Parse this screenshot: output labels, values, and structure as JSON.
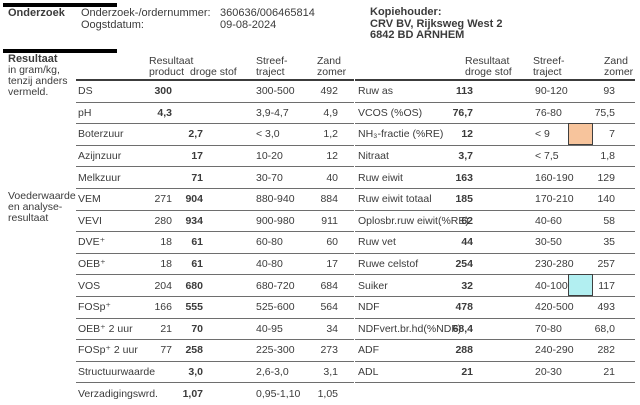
{
  "colors": {
    "orange_marker": "#F7C49C",
    "cyan_marker": "#B2EFF1"
  },
  "header": {
    "section_title": "Onderzoek",
    "order_label": "Onderzoek-/ordernummer:",
    "order_value": "360636/006465814",
    "harvest_label": "Oogstdatum:",
    "harvest_value": "09-08-2024",
    "copyholder": {
      "label": "Kopiehouder:",
      "lines": [
        "CRV BV, Rijksweg West 2",
        "6842 BD  ARNHEM"
      ]
    }
  },
  "result_section": {
    "title": "Resultaat",
    "subtitle_lines": [
      "in gram/kg,",
      "tenzij anders",
      "vermeld."
    ],
    "sidebar_lines": [
      "Voederwaarde",
      "en analyse-",
      "resultaat"
    ]
  },
  "left_table": {
    "headers": {
      "result": "Resultaat",
      "sub_product": "product",
      "sub_ds": "droge stof",
      "streef_1": "Streef-",
      "streef_2": "traject",
      "zand_1": "Zand",
      "zand_2": "zomer"
    },
    "rows": [
      {
        "label": "DS",
        "product": "300",
        "ds": "",
        "streef": "300-500",
        "zand": "492"
      },
      {
        "label": "pH",
        "product": "4,3",
        "ds": "",
        "streef": "3,9-4,7",
        "zand": "4,9"
      },
      {
        "label": "Boterzuur",
        "product": "",
        "ds": "2,7",
        "streef": "< 3,0",
        "zand": "1,2"
      },
      {
        "label": "Azijnzuur",
        "product": "",
        "ds": "17",
        "streef": "10-20",
        "zand": "12"
      },
      {
        "label": "Melkzuur",
        "product": "",
        "ds": "71",
        "streef": "30-70",
        "zand": "40"
      },
      {
        "label": "VEM",
        "product": "271",
        "ds": "904",
        "streef": "880-940",
        "zand": "884"
      },
      {
        "label": "VEVI",
        "product": "280",
        "ds": "934",
        "streef": "900-980",
        "zand": "911"
      },
      {
        "label": "DVE⁺",
        "product": "18",
        "ds": "61",
        "streef": "60-80",
        "zand": "60"
      },
      {
        "label": "OEB⁺",
        "product": "18",
        "ds": "61",
        "streef": "40-80",
        "zand": "17"
      },
      {
        "label": "VOS",
        "product": "204",
        "ds": "680",
        "streef": "680-720",
        "zand": "684"
      },
      {
        "label": "FOSp⁺",
        "product": "166",
        "ds": "555",
        "streef": "525-600",
        "zand": "564"
      },
      {
        "label": "OEB⁺ 2 uur",
        "product": "21",
        "ds": "70",
        "streef": "40-95",
        "zand": "34"
      },
      {
        "label": "FOSp⁺ 2 uur",
        "product": "77",
        "ds": "258",
        "streef": "225-300",
        "zand": "273"
      },
      {
        "label": "Structuurwaarde",
        "product": "",
        "ds": "3,0",
        "streef": "2,6-3,0",
        "zand": "3,1"
      },
      {
        "label": "Verzadigingswrd.",
        "product": "",
        "ds": "1,07",
        "streef": "0,95-1,10",
        "zand": "1,05"
      }
    ]
  },
  "right_table": {
    "headers": {
      "result_1": "Resultaat",
      "result_2": "droge stof",
      "streef_1": "Streef-",
      "streef_2": "traject",
      "zand_1": "Zand",
      "zand_2": "zomer"
    },
    "rows": [
      {
        "label": "Ruw as",
        "ds": "113",
        "streef": "90-120",
        "zand": "93"
      },
      {
        "label": "VCOS (%OS)",
        "ds": "76,7",
        "streef": "76-80",
        "zand": "75,5"
      },
      {
        "label": "NH₃-fractie (%RE)",
        "ds": "12",
        "streef": "< 9",
        "zand": "7",
        "marker": "orange_marker"
      },
      {
        "label": "Nitraat",
        "ds": "3,7",
        "streef": "< 7,5",
        "zand": "1,8"
      },
      {
        "label": "Ruw eiwit",
        "ds": "163",
        "streef": "160-190",
        "zand": "129"
      },
      {
        "label": "Ruw eiwit totaal",
        "ds": "185",
        "streef": "170-210",
        "zand": "140"
      },
      {
        "label": "Oplosbr.ruw eiwit(%RE)",
        "ds": "62",
        "streef": "40-60",
        "zand": "58"
      },
      {
        "label": "Ruw vet",
        "ds": "44",
        "streef": "30-50",
        "zand": "35"
      },
      {
        "label": "Ruwe celstof",
        "ds": "254",
        "streef": "230-280",
        "zand": "257"
      },
      {
        "label": "Suiker",
        "ds": "32",
        "streef": "40-100",
        "zand": "117",
        "marker": "cyan_marker"
      },
      {
        "label": "NDF",
        "ds": "478",
        "streef": "420-500",
        "zand": "493"
      },
      {
        "label": "NDFvert.br.hd(%NDF)",
        "ds": "68,4",
        "streef": "70-80",
        "zand": "68,0"
      },
      {
        "label": "ADF",
        "ds": "288",
        "streef": "240-290",
        "zand": "282"
      },
      {
        "label": "ADL",
        "ds": "21",
        "streef": "20-30",
        "zand": "21"
      }
    ]
  }
}
